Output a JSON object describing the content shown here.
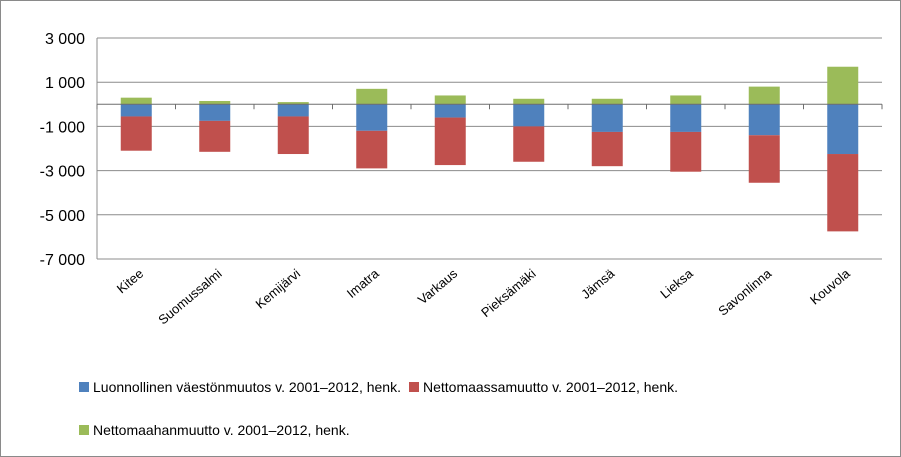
{
  "chart_data": {
    "type": "bar",
    "stacked": true,
    "categories": [
      "Kitee",
      "Suomussalmi",
      "Kemijärvi",
      "Imatra",
      "Varkaus",
      "Pieksämäki",
      "Jämsä",
      "Lieksa",
      "Savonlinna",
      "Kouvola"
    ],
    "series": [
      {
        "name": "Luonnollinen väestönmuutos v. 2001–2012, henk.",
        "color": "#4F81BD",
        "values": [
          -550,
          -750,
          -550,
          -1200,
          -600,
          -1000,
          -1250,
          -1250,
          -1400,
          -2250
        ]
      },
      {
        "name": "Nettomaassamuutto v. 2001–2012, henk.",
        "color": "#C0504D",
        "values": [
          -1550,
          -1400,
          -1700,
          -1700,
          -2150,
          -1600,
          -1550,
          -1800,
          -2150,
          -3500
        ]
      },
      {
        "name": "Nettomaahanmuutto v. 2001–2012, henk.",
        "color": "#9BBB59",
        "values": [
          300,
          150,
          100,
          700,
          400,
          250,
          250,
          400,
          800,
          1700
        ]
      }
    ],
    "ylim": [
      -7000,
      3000
    ],
    "yticks": [
      "3 000",
      "1 000",
      "-1 000",
      "-3 000",
      "-5 000",
      "-7 000"
    ],
    "ytick_values": [
      3000,
      1000,
      -1000,
      -3000,
      -5000,
      -7000
    ],
    "grid": true,
    "legend_position": "bottom"
  }
}
